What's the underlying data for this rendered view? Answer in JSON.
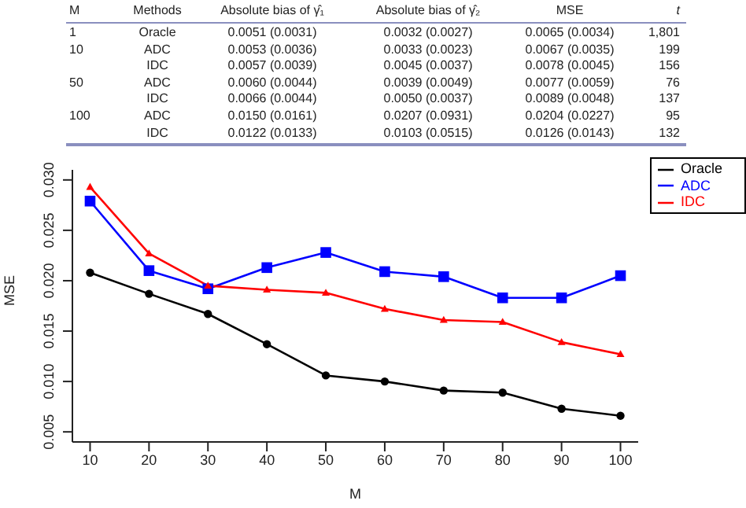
{
  "chart_data": {
    "type": "line",
    "xlabel": "M",
    "ylabel": "MSE",
    "x": [
      10,
      20,
      30,
      40,
      50,
      60,
      70,
      80,
      90,
      100
    ],
    "series": [
      {
        "name": "Oracle",
        "color": "#000000",
        "marker": "circle",
        "values": [
          0.0208,
          0.0187,
          0.0167,
          0.0137,
          0.0106,
          0.01,
          0.0091,
          0.0089,
          0.0073,
          0.0066
        ]
      },
      {
        "name": "ADC",
        "color": "#0000ff",
        "marker": "square",
        "values": [
          0.0279,
          0.021,
          0.0192,
          0.0213,
          0.0228,
          0.0209,
          0.0204,
          0.0183,
          0.0183,
          0.0205
        ]
      },
      {
        "name": "IDC",
        "color": "#ff0000",
        "marker": "triangle",
        "values": [
          0.0293,
          0.0227,
          0.0195,
          0.0191,
          0.0188,
          0.0172,
          0.0161,
          0.0159,
          0.0139,
          0.0127
        ]
      }
    ],
    "xlim": [
      7,
      103
    ],
    "xticks": [
      10,
      20,
      30,
      40,
      50,
      60,
      70,
      80,
      90,
      100
    ],
    "ylim": [
      0.004,
      0.031
    ],
    "yticks": [
      {
        "value": 0.005,
        "label": "0.005"
      },
      {
        "value": 0.01,
        "label": "0.010"
      },
      {
        "value": 0.015,
        "label": "0.015"
      },
      {
        "value": 0.02,
        "label": "0.020"
      },
      {
        "value": 0.025,
        "label": "0.025"
      },
      {
        "value": 0.03,
        "label": "0.030"
      }
    ],
    "grid": false,
    "legend": "top right",
    "line_style": "solid",
    "annotations": [
      "M  Methods  Absolute bias of γ̂₁  Absolute bias of γ̂₂  MSE  t",
      "1  Oracle  0.0051 (0.0031)  0.0032 (0.0027)  0.0065 (0.0034)  1,801",
      "10  ADC  0.0053 (0.0036)  0.0033 (0.0023)  0.0067 (0.0035)  199",
      "IDC  0.0057 (0.0039)  0.0045 (0.0037)  0.0078 (0.0045)  156",
      "50  ADC  0.0060 (0.0044)  0.0039 (0.0049)  0.0077 (0.0059)  76",
      "IDC  0.0066 (0.0044)  0.0050 (0.0037)  0.0089 (0.0048)  137",
      "100  ADC  0.0150 (0.0161)  0.0207 (0.0931)  0.0204 (0.0227)  95",
      "IDC  0.0122 (0.0133)  0.0103 (0.0515)  0.0126 (0.0143)  132"
    ]
  }
}
